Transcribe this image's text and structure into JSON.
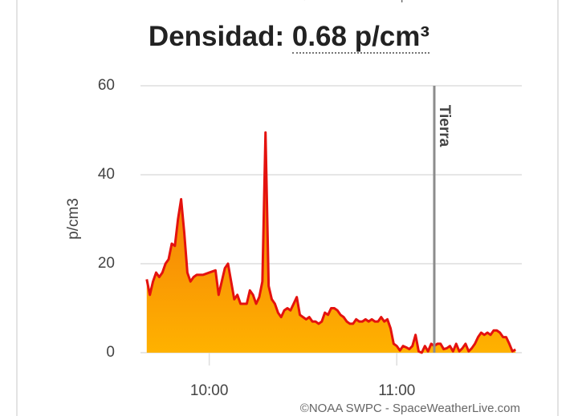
{
  "chart_data": {
    "type": "area",
    "title": "Densidad:",
    "current_value": "0.68 p/cm³",
    "credit": "©NOAA SWPC - SpaceWeatherLive.com",
    "ylabel": "p/cm3",
    "ylim": [
      0,
      60
    ],
    "yticks": [
      0,
      20,
      40,
      60
    ],
    "grid": true,
    "xlim": [
      "09:38",
      "11:40"
    ],
    "xticks": [
      "10:00",
      "11:00"
    ],
    "color": "#e4120e",
    "fill_colors": [
      "#f06a0a",
      "#ffb200"
    ],
    "marker": {
      "x": "11:12",
      "label": "Tierra",
      "color": "#8c8c8c"
    },
    "x": [
      "09:40",
      "09:41",
      "09:42",
      "09:43",
      "09:44",
      "09:45",
      "09:46",
      "09:47",
      "09:48",
      "09:49",
      "09:50",
      "09:51",
      "09:52",
      "09:53",
      "09:54",
      "09:55",
      "09:56",
      "09:58",
      "10:00",
      "10:02",
      "10:03",
      "10:04",
      "10:05",
      "10:06",
      "10:07",
      "10:08",
      "10:09",
      "10:10",
      "10:11",
      "10:12",
      "10:13",
      "10:14",
      "10:15",
      "10:16",
      "10:17",
      "10:18",
      "10:19",
      "10:20",
      "10:21",
      "10:22",
      "10:23",
      "10:24",
      "10:25",
      "10:26",
      "10:27",
      "10:28",
      "10:29",
      "10:30",
      "10:31",
      "10:32",
      "10:33",
      "10:34",
      "10:35",
      "10:36",
      "10:37",
      "10:38",
      "10:39",
      "10:40",
      "10:41",
      "10:42",
      "10:43",
      "10:44",
      "10:45",
      "10:46",
      "10:47",
      "10:48",
      "10:49",
      "10:50",
      "10:51",
      "10:52",
      "10:53",
      "10:54",
      "10:55",
      "10:56",
      "10:57",
      "10:58",
      "10:59",
      "11:00",
      "11:01",
      "11:02",
      "11:03",
      "11:04",
      "11:05",
      "11:06",
      "11:07",
      "11:08",
      "11:09",
      "11:10",
      "11:11",
      "11:12",
      "11:13",
      "11:14",
      "11:15",
      "11:16",
      "11:17",
      "11:18",
      "11:19",
      "11:20",
      "11:21",
      "11:22",
      "11:23",
      "11:24",
      "11:25",
      "11:26",
      "11:27",
      "11:28",
      "11:29",
      "11:30",
      "11:31",
      "11:32",
      "11:33",
      "11:34",
      "11:35",
      "11:36",
      "11:37",
      "11:38"
    ],
    "values": [
      16.5,
      13,
      16,
      18,
      17,
      18,
      20,
      21,
      24.5,
      24,
      30,
      34.5,
      27,
      18,
      16,
      17,
      17.5,
      17.5,
      18,
      18.5,
      13,
      16,
      19,
      20,
      16,
      12,
      13,
      11,
      11,
      11,
      14,
      13,
      11,
      12.5,
      16,
      49.5,
      15,
      12,
      11,
      9,
      8,
      9.5,
      10,
      9.5,
      11,
      12.5,
      8.5,
      8,
      7.5,
      8,
      7,
      7,
      6.5,
      7,
      9,
      8.5,
      10,
      10,
      9.5,
      8.5,
      8,
      7,
      6.5,
      6.5,
      7.5,
      7,
      7,
      7.5,
      7,
      7.5,
      7,
      7,
      8,
      7,
      7.5,
      5.5,
      2,
      1.5,
      0.5,
      1.5,
      1.2,
      0.8,
      1.5,
      4,
      0.3,
      0,
      1.5,
      0.3,
      2,
      1.5,
      2,
      2,
      0.8,
      1,
      1.5,
      0.3,
      2,
      0.3,
      1,
      2,
      0.3,
      1,
      2,
      3.5,
      4.5,
      4,
      4.5,
      4,
      5,
      5,
      4.5,
      3.5,
      3.5,
      2,
      0.3,
      0.7
    ]
  }
}
